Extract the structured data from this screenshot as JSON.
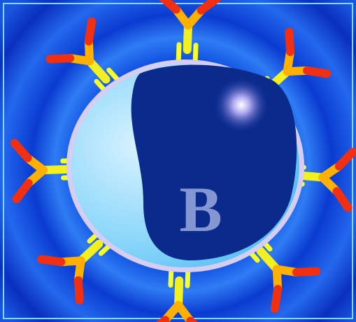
{
  "label": "B"
}
